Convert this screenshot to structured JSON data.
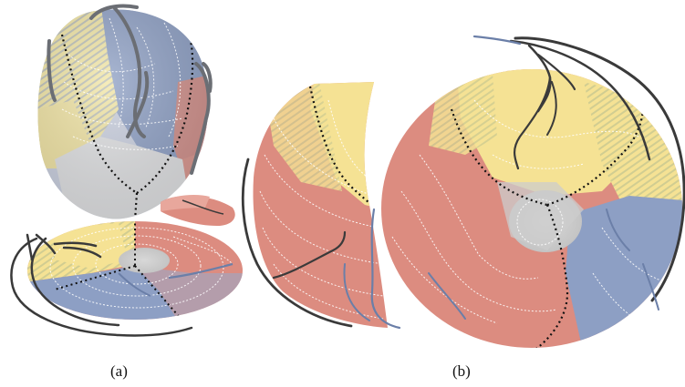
{
  "figure": {
    "panels": [
      {
        "id": "a",
        "caption": "(a)"
      },
      {
        "id": "b",
        "caption": "(b)"
      }
    ],
    "colors": {
      "red": "#dc8c80",
      "yellow": "#f5e294",
      "blue": "#8d9fc4",
      "grey": "#c9c9c9",
      "vessel": "#5a5a5a",
      "boundary": "#111111",
      "contour": "#ffffff",
      "background": "#ffffff"
    }
  }
}
